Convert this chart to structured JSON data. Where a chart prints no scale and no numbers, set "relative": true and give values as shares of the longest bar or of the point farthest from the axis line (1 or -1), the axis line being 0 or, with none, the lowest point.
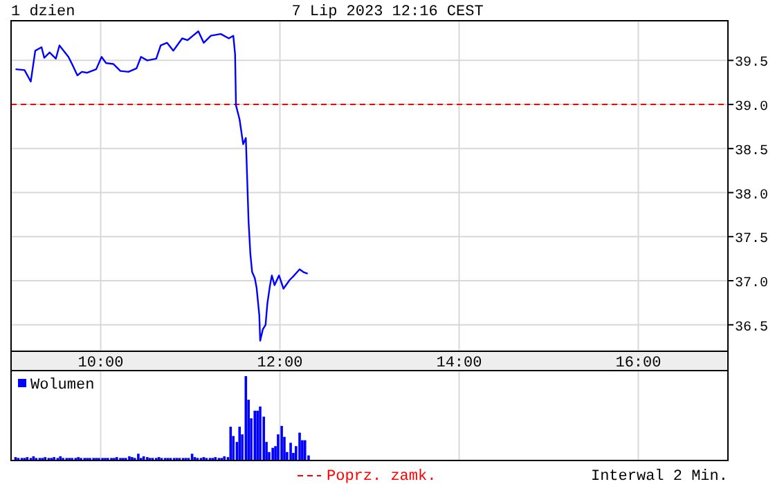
{
  "chart_data": [
    {
      "type": "line",
      "title": "1 dzien",
      "subtitle": "7 Lip 2023 12:16 CEST",
      "annotations": [
        "Interwal 2 Min."
      ],
      "x": [
        9.05,
        9.15,
        9.22,
        9.27,
        9.34,
        9.37,
        9.43,
        9.5,
        9.54,
        9.64,
        9.68,
        9.74,
        9.79,
        9.85,
        9.95,
        10.01,
        10.06,
        10.14,
        10.22,
        10.31,
        10.4,
        10.45,
        10.52,
        10.62,
        10.67,
        10.74,
        10.81,
        10.91,
        10.97,
        11.03,
        11.09,
        11.15,
        11.23,
        11.34,
        11.43,
        11.48,
        11.5,
        11.51,
        11.55,
        11.59,
        11.62,
        11.63,
        11.65,
        11.67,
        11.69,
        11.72,
        11.74,
        11.77,
        11.78,
        11.81,
        11.84,
        11.86,
        11.89,
        11.91,
        11.94,
        11.99,
        12.04,
        12.11,
        12.15,
        12.22,
        12.26,
        12.31
      ],
      "series": [
        {
          "color": "#0000ff",
          "values": [
            39.4,
            39.39,
            39.26,
            39.61,
            39.65,
            39.53,
            39.59,
            39.52,
            39.67,
            39.54,
            39.46,
            39.33,
            39.37,
            39.36,
            39.4,
            39.54,
            39.47,
            39.46,
            39.38,
            39.37,
            39.41,
            39.54,
            39.5,
            39.52,
            39.67,
            39.7,
            39.61,
            39.75,
            39.73,
            39.78,
            39.83,
            39.7,
            39.78,
            39.8,
            39.75,
            39.78,
            39.57,
            38.99,
            38.83,
            38.55,
            38.62,
            38.31,
            37.68,
            37.31,
            37.1,
            37.03,
            36.92,
            36.61,
            36.32,
            36.45,
            36.5,
            36.74,
            36.95,
            37.06,
            36.95,
            37.06,
            36.91,
            37.01,
            37.05,
            37.13,
            37.1,
            37.08
          ]
        }
      ],
      "xlim": [
        9,
        17
      ],
      "xticks": [
        {
          "value": 10,
          "label": "10:00"
        },
        {
          "value": 11,
          "label": null
        },
        {
          "value": 12,
          "label": "12:00"
        },
        {
          "value": 13,
          "label": null
        },
        {
          "value": 14,
          "label": "14:00"
        },
        {
          "value": 15,
          "label": null
        },
        {
          "value": 16,
          "label": "16:00"
        }
      ],
      "ylim": [
        36.2,
        39.95
      ],
      "yticks": [
        {
          "value": 36.5,
          "label": "36.5"
        },
        {
          "value": 37,
          "label": "37.0"
        },
        {
          "value": 37.5,
          "label": "37.5"
        },
        {
          "value": 38,
          "label": "38.0"
        },
        {
          "value": 38.5,
          "label": "38.5"
        },
        {
          "value": 39,
          "label": "39.0"
        },
        {
          "value": 39.5,
          "label": "39.5"
        }
      ],
      "grid": true,
      "line_style": "solid",
      "marker": "none",
      "ref_lines": [
        {
          "axis": "y",
          "value": 39,
          "label": "Poprz. zamk.",
          "color": "#ff0000",
          "line_style": "dashed"
        }
      ]
    },
    {
      "type": "bar",
      "relative": true,
      "legend": "top left",
      "grid": "x",
      "tick_labels": false,
      "xlim": [
        9,
        17
      ],
      "xticks": [
        {
          "value": 10,
          "label": null
        },
        {
          "value": 12,
          "label": null
        },
        {
          "value": 14,
          "label": null
        },
        {
          "value": 16,
          "label": null
        }
      ],
      "x": [
        9.05,
        9.08,
        9.12,
        9.15,
        9.18,
        9.22,
        9.25,
        9.28,
        9.32,
        9.35,
        9.38,
        9.42,
        9.45,
        9.48,
        9.52,
        9.55,
        9.58,
        9.62,
        9.65,
        9.68,
        9.72,
        9.75,
        9.78,
        9.82,
        9.85,
        9.88,
        9.92,
        9.95,
        9.98,
        10.02,
        10.05,
        10.08,
        10.12,
        10.15,
        10.18,
        10.22,
        10.25,
        10.28,
        10.32,
        10.35,
        10.38,
        10.42,
        10.45,
        10.48,
        10.52,
        10.55,
        10.58,
        10.62,
        10.65,
        10.68,
        10.72,
        10.75,
        10.78,
        10.82,
        10.85,
        10.88,
        10.92,
        10.95,
        10.98,
        11.02,
        11.05,
        11.08,
        11.12,
        11.15,
        11.18,
        11.22,
        11.25,
        11.28,
        11.32,
        11.35,
        11.38,
        11.42,
        11.45,
        11.48,
        11.52,
        11.55,
        11.58,
        11.62,
        11.65,
        11.68,
        11.72,
        11.75,
        11.78,
        11.82,
        11.85,
        11.88,
        11.92,
        11.95,
        11.98,
        12.02,
        12.05,
        12.08,
        12.12,
        12.15,
        12.18,
        12.22,
        12.25,
        12.28,
        12.32
      ],
      "series": [
        {
          "name": "Wolumen",
          "color": "#0000ff",
          "values": [
            0.04,
            0.03,
            0.03,
            0.03,
            0.04,
            0.03,
            0.05,
            0.03,
            0.03,
            0.03,
            0.04,
            0.03,
            0.03,
            0.04,
            0.03,
            0.05,
            0.03,
            0.03,
            0.03,
            0.03,
            0.03,
            0.04,
            0.03,
            0.03,
            0.03,
            0.03,
            0.03,
            0.03,
            0.03,
            0.03,
            0.03,
            0.03,
            0.03,
            0.03,
            0.04,
            0.03,
            0.03,
            0.03,
            0.05,
            0.04,
            0.03,
            0.08,
            0.03,
            0.05,
            0.04,
            0.03,
            0.03,
            0.03,
            0.04,
            0.03,
            0.03,
            0.03,
            0.03,
            0.03,
            0.03,
            0.03,
            0.03,
            0.03,
            0.03,
            0.08,
            0.04,
            0.03,
            0.03,
            0.04,
            0.03,
            0.03,
            0.03,
            0.04,
            0.03,
            0.03,
            0.05,
            0.04,
            0.4,
            0.29,
            0.22,
            0.4,
            0.31,
            1.0,
            0.72,
            0.5,
            0.59,
            0.59,
            0.64,
            0.52,
            0.22,
            0.1,
            0.15,
            0.17,
            0.31,
            0.41,
            0.28,
            0.1,
            0.21,
            0.09,
            0.17,
            0.33,
            0.24,
            0.24,
            0.06
          ]
        }
      ]
    }
  ]
}
